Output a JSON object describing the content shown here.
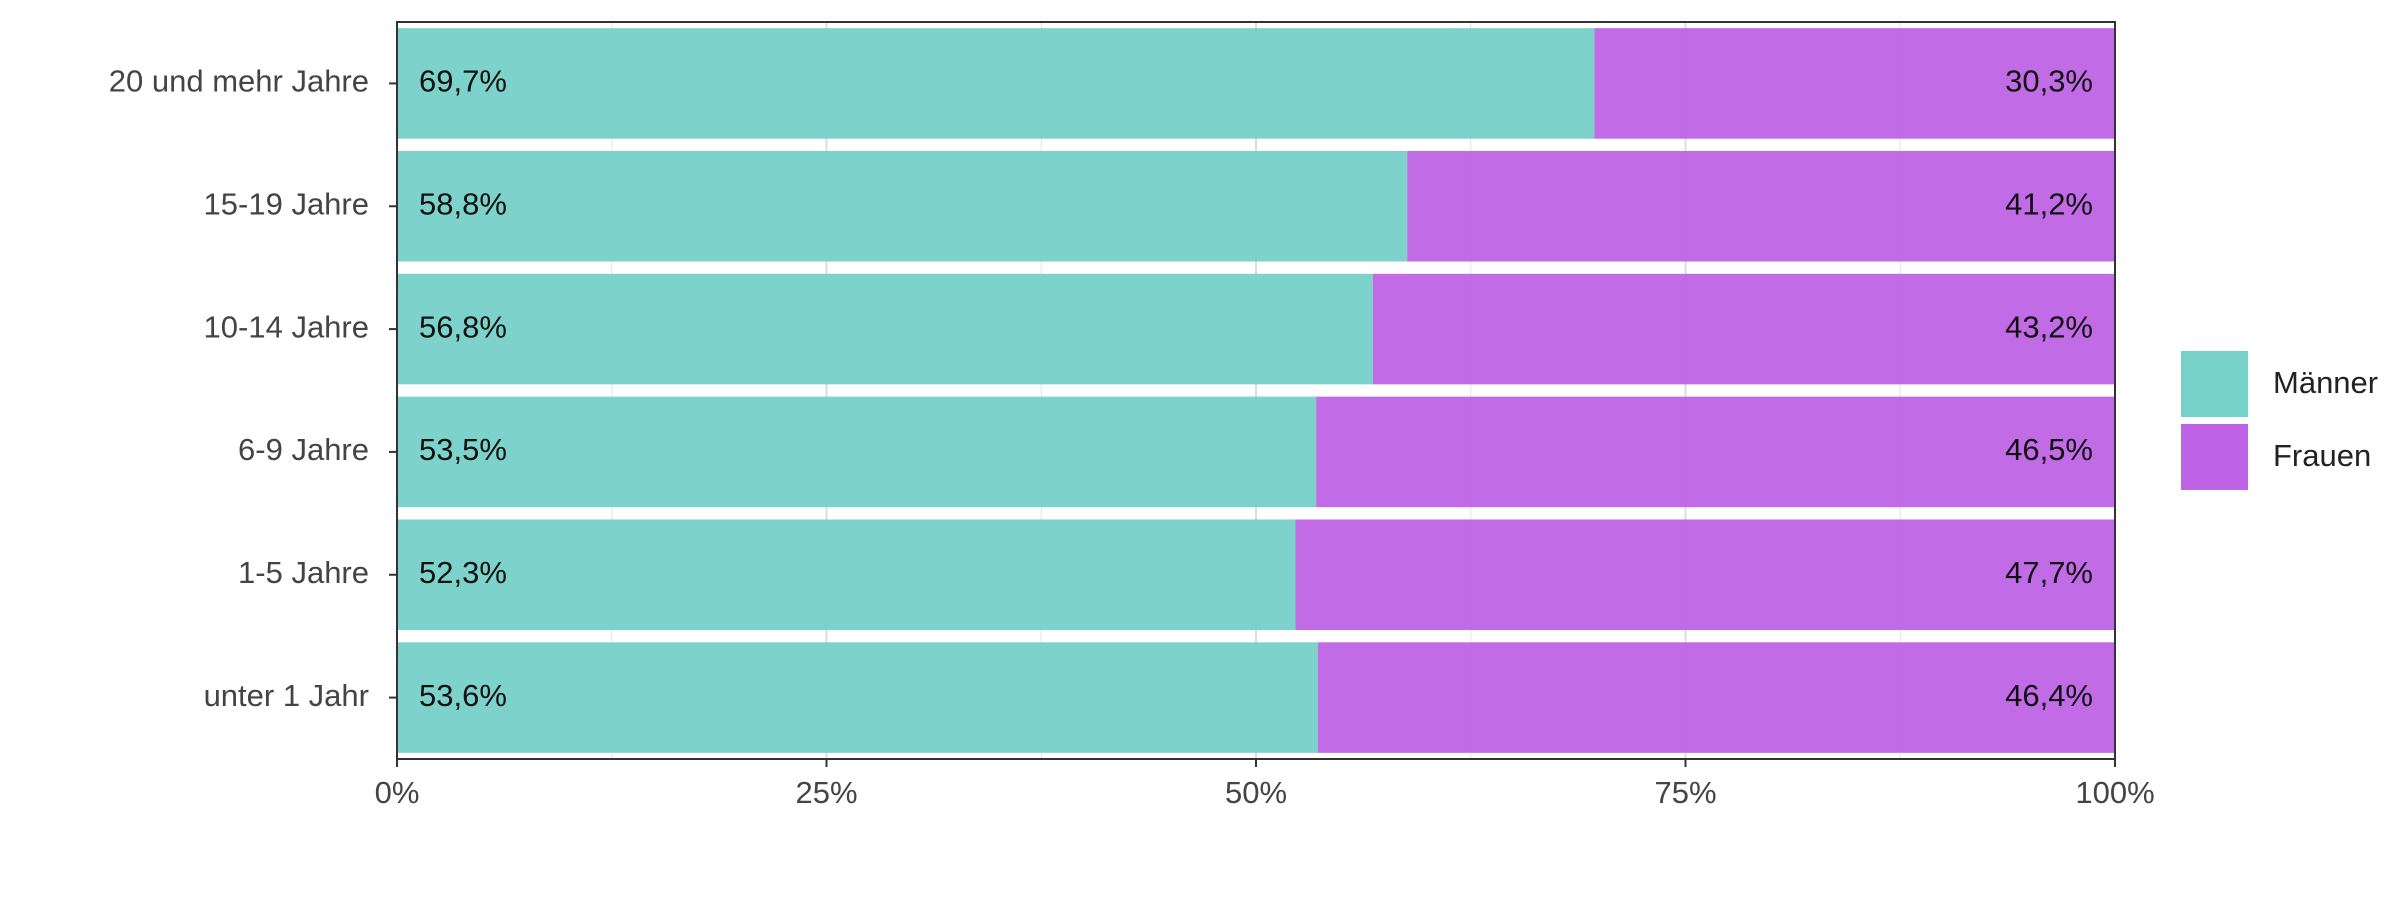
{
  "chart_data": {
    "type": "stacked-bar-horizontal",
    "categories": [
      "20 und mehr Jahre",
      "15-19 Jahre",
      "10-14 Jahre",
      "6-9 Jahre",
      "1-5 Jahre",
      "unter 1 Jahr"
    ],
    "series": [
      {
        "name": "Männer",
        "color": "#76d1c9",
        "values": [
          69.7,
          58.8,
          56.8,
          53.5,
          52.3,
          53.6
        ],
        "value_labels": [
          "69,7%",
          "58,8%",
          "56,8%",
          "53,5%",
          "52,3%",
          "53,6%"
        ]
      },
      {
        "name": "Frauen",
        "color": "#bf63e6",
        "values": [
          30.3,
          41.2,
          43.2,
          46.5,
          47.7,
          46.4
        ],
        "value_labels": [
          "30,3%",
          "41,2%",
          "43,2%",
          "46,5%",
          "47,7%",
          "46,4%"
        ]
      }
    ],
    "xlim": [
      0,
      100
    ],
    "xticks": [
      {
        "value": 0,
        "label": "0%"
      },
      {
        "value": 25,
        "label": "25%"
      },
      {
        "value": 50,
        "label": "50%"
      },
      {
        "value": 75,
        "label": "75%"
      },
      {
        "value": 100,
        "label": "100%"
      }
    ],
    "grid": true,
    "legend": "right"
  }
}
